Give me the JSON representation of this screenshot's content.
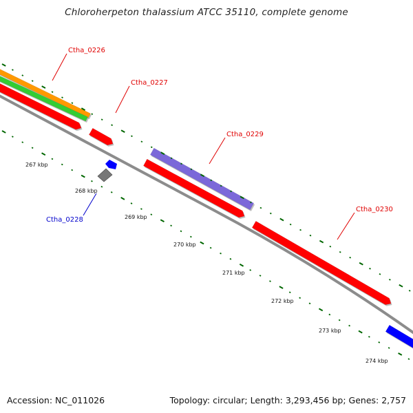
{
  "title": "Chloroherpeton thalassium ATCC 35110, complete genome",
  "footer": {
    "accession": "Accession: NC_011026",
    "summary": "Topology: circular; Length: 3,293,456 bp; Genes: 2,757"
  },
  "scale": {
    "labels": [
      "267 kbp",
      "268 kbp",
      "269 kbp",
      "270 kbp",
      "271 kbp",
      "272 kbp",
      "273 kbp",
      "274 kbp"
    ]
  },
  "gene_labels": [
    {
      "text": "Ctha_0226",
      "color": "#e00000"
    },
    {
      "text": "Ctha_0227",
      "color": "#e00000"
    },
    {
      "text": "Ctha_0228",
      "color": "#0000cc"
    },
    {
      "text": "Ctha_0229",
      "color": "#e00000"
    },
    {
      "text": "Ctha_0230",
      "color": "#e00000"
    }
  ],
  "colors": {
    "backbone": "#8c8c8c",
    "cds_red": "#ff0000",
    "rna_orange": "#ff9900",
    "gene_green": "#33cc33",
    "misc_purple": "#7b68d9",
    "cds_blue": "#0000ff",
    "tick_green": "#006600",
    "gray_feature": "#777777"
  }
}
